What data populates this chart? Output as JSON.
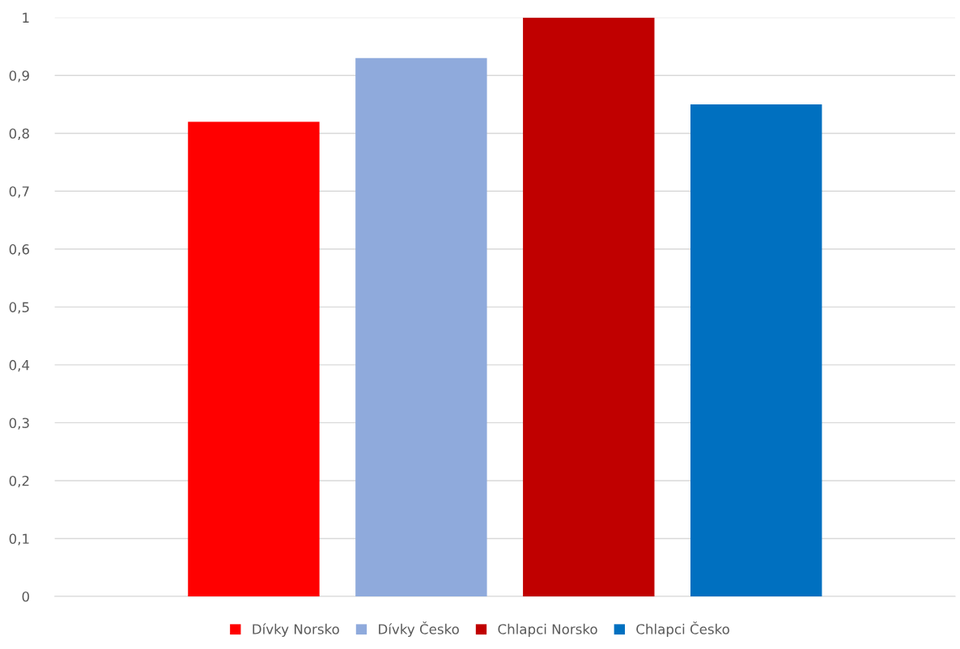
{
  "chart_data": {
    "type": "bar",
    "categories": [
      null
    ],
    "series": [
      {
        "name": "Dívky Norsko",
        "color": "#ff0000",
        "values": [
          0.82
        ]
      },
      {
        "name": "Dívky Česko",
        "color": "#8faadc",
        "values": [
          0.93
        ]
      },
      {
        "name": "Chlapci Norsko",
        "color": "#c00000",
        "values": [
          1.0
        ]
      },
      {
        "name": "Chlapci Česko",
        "color": "#0070c0",
        "values": [
          0.85
        ]
      }
    ],
    "ylim": [
      0,
      1
    ],
    "yticks": [
      0,
      {
        "value": 0.1,
        "label": "0,1"
      },
      {
        "value": 0.2,
        "label": "0,2"
      },
      {
        "value": 0.3,
        "label": "0,3"
      },
      {
        "value": 0.4,
        "label": "0,4"
      },
      {
        "value": 0.5,
        "label": "0,5"
      },
      {
        "value": 0.6,
        "label": "0,6"
      },
      {
        "value": 0.7,
        "label": "0,7"
      },
      {
        "value": 0.8,
        "label": "0,8"
      },
      {
        "value": 0.9,
        "label": "0,9"
      },
      1
    ],
    "grid": "y",
    "legend": "bottom"
  }
}
